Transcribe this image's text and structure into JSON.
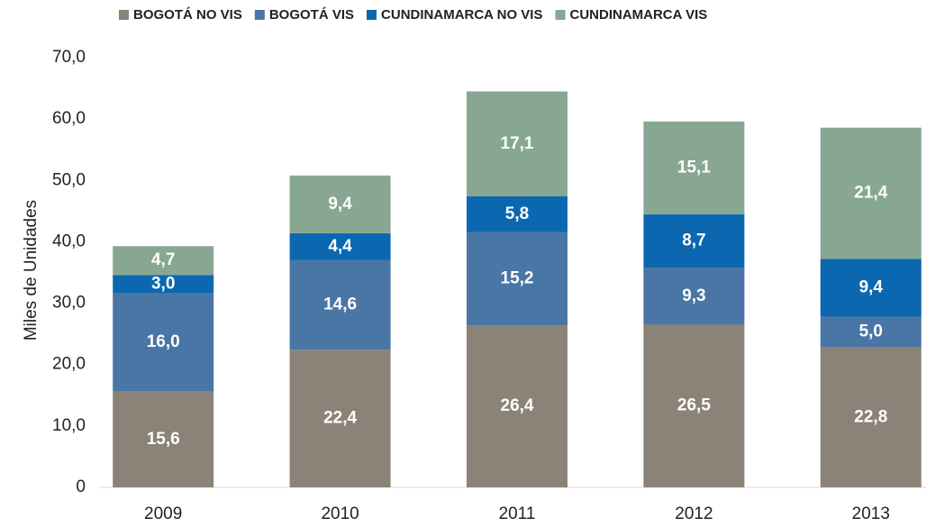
{
  "chart_data": {
    "type": "stacked_bar",
    "y_label": "Miles de Unidades",
    "categories": [
      "2009",
      "2010",
      "2011",
      "2012",
      "2013"
    ],
    "series": [
      {
        "name": "BOGOTÁ NO VIS",
        "color": "#8b8377",
        "values": [
          15.6,
          22.4,
          26.4,
          26.5,
          22.8
        ],
        "value_labels": [
          "15,6",
          "22,4",
          "26,4",
          "26,5",
          "22,8"
        ]
      },
      {
        "name": "BOGOTÁ VIS",
        "color": "#4a76a5",
        "values": [
          16.0,
          14.6,
          15.2,
          9.3,
          5.0
        ],
        "value_labels": [
          "16,0",
          "14,6",
          "15,2",
          "9,3",
          "5,0"
        ]
      },
      {
        "name": "CUNDINAMARCA NO VIS",
        "color": "#0b68b0",
        "values": [
          3.0,
          4.4,
          5.8,
          8.7,
          9.4
        ],
        "value_labels": [
          "3,0",
          "4,4",
          "5,8",
          "8,7",
          "9,4"
        ]
      },
      {
        "name": "CUNDINAMARCA VIS",
        "color": "#88a792",
        "values": [
          4.7,
          9.4,
          17.1,
          15.1,
          21.4
        ],
        "value_labels": [
          "4,7",
          "9,4",
          "17,1",
          "15,1",
          "21,4"
        ]
      }
    ],
    "ylim": [
      0,
      70
    ],
    "yticks": [
      0,
      {
        "value": 10,
        "label": "10,0"
      },
      {
        "value": 20,
        "label": "20,0"
      },
      {
        "value": 30,
        "label": "30,0"
      },
      {
        "value": 40,
        "label": "40,0"
      },
      {
        "value": 50,
        "label": "50,0"
      },
      {
        "value": 60,
        "label": "60,0"
      },
      {
        "value": 70,
        "label": "70,0"
      }
    ],
    "grid": false,
    "legend": "top"
  }
}
